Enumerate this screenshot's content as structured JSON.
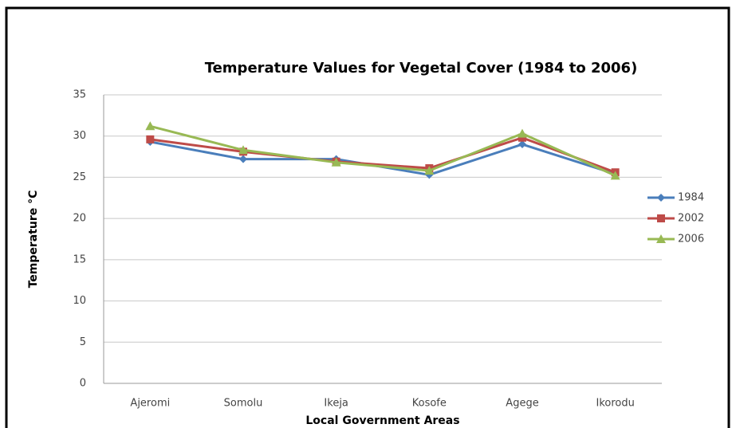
{
  "chart_data": {
    "type": "line",
    "title": "Temperature Values for Vegetal Cover (1984 to 2006)",
    "x_label": "Local Government Areas",
    "y_label": "Temperature °C",
    "categories": [
      "Ajeromi",
      "Somolu",
      "Ikeja",
      "Kosofe",
      "Agege",
      "Ikorodu"
    ],
    "series": [
      {
        "name": "1984",
        "color": "#4a7ebb",
        "marker": "diamond",
        "values": [
          29.3,
          27.2,
          27.2,
          25.3,
          29.0,
          25.4
        ]
      },
      {
        "name": "2002",
        "color": "#be4b48",
        "marker": "square",
        "values": [
          29.6,
          28.1,
          26.9,
          26.1,
          29.8,
          25.6
        ]
      },
      {
        "name": "2006",
        "color": "#98b954",
        "marker": "triangle",
        "values": [
          31.2,
          28.3,
          26.8,
          25.8,
          30.3,
          25.2
        ]
      }
    ],
    "ylim": [
      0,
      35
    ],
    "yticks": [
      0,
      5,
      10,
      15,
      20,
      25,
      30,
      35
    ],
    "grid": true,
    "legend": "right"
  }
}
